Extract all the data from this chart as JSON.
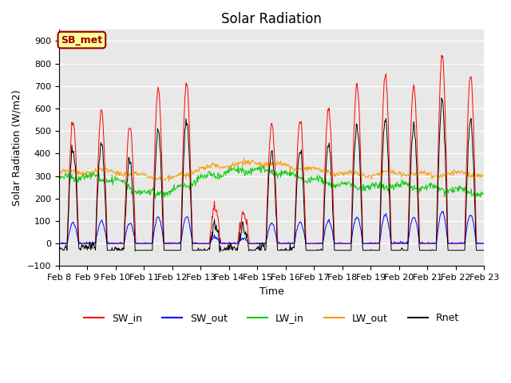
{
  "title": "Solar Radiation",
  "ylabel": "Solar Radiation (W/m2)",
  "xlabel": "Time",
  "ylim": [
    -100,
    950
  ],
  "yticks": [
    -100,
    0,
    100,
    200,
    300,
    400,
    500,
    600,
    700,
    800,
    900
  ],
  "days": 15,
  "colors": {
    "SW_in": "#ff0000",
    "SW_out": "#0000ff",
    "LW_in": "#00cc00",
    "LW_out": "#ff9900",
    "Rnet": "#000000"
  },
  "legend_labels": [
    "SW_in",
    "SW_out",
    "LW_in",
    "LW_out",
    "Rnet"
  ],
  "annotation_text": "SB_met",
  "annotation_bg": "#ffff99",
  "annotation_edge": "#990000",
  "plot_bg_color": "#e8e8e8",
  "fig_bg_color": "#ffffff",
  "grid_color": "#ffffff",
  "title_fontsize": 12,
  "axis_fontsize": 9,
  "tick_fontsize": 8,
  "sw_in_peaks": [
    540,
    590,
    530,
    680,
    710,
    160,
    130,
    530,
    545,
    600,
    710,
    750,
    700,
    840,
    750
  ],
  "pts_per_day": 48
}
